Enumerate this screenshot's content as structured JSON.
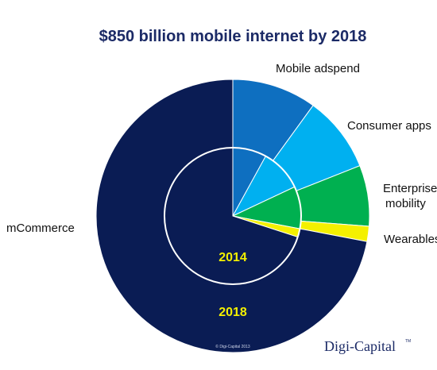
{
  "chart_data": {
    "type": "pie",
    "title": "$850 billion mobile internet by 2018",
    "categories": [
      "Mobile adspend",
      "Consumer apps",
      "Enterprise mobility",
      "Wearables",
      "mCommerce"
    ],
    "series": [
      {
        "name": "2018",
        "values": [
          10,
          9,
          7.2,
          1.8,
          72
        ]
      },
      {
        "name": "2014",
        "values": [
          8,
          10,
          10,
          2,
          70
        ]
      }
    ],
    "ring_labels": {
      "outer": "2018",
      "inner": "2014"
    },
    "colors": {
      "Mobile adspend": "#0e6fc0",
      "Consumer apps": "#00b0f0",
      "Enterprise mobility": "#00b050",
      "Wearables": "#f4f000",
      "mCommerce": "#0a1c54"
    },
    "legend_placement": "labels beside slices"
  },
  "labels": {
    "mobile_adspend": "Mobile adspend",
    "consumer_apps": "Consumer apps",
    "enterprise_line1": "Enterprise",
    "enterprise_line2": "mobility",
    "wearables": "Wearables",
    "mcommerce": "mCommerce"
  },
  "copyright": "© Digi-Capital 2013",
  "brand": {
    "name": "Digi-Capital",
    "tm": "TM"
  }
}
